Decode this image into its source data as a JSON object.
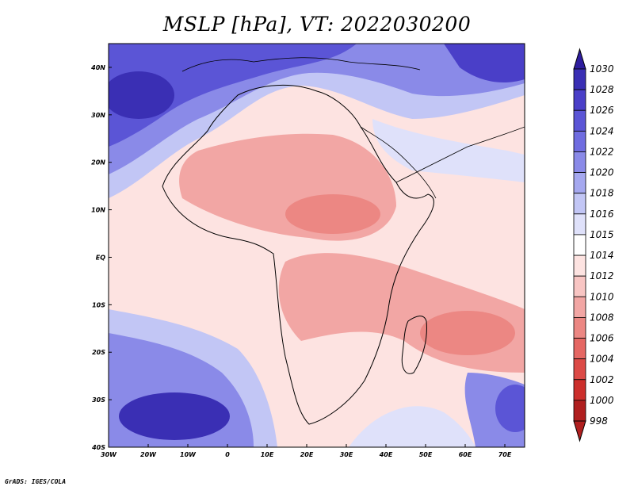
{
  "title": "MSLP [hPa], VT: 2022030200",
  "footer": "GrADS: IGES/COLA",
  "map": {
    "lon_labels": [
      "30W",
      "20W",
      "10W",
      "0",
      "10E",
      "20E",
      "30E",
      "40E",
      "50E",
      "60E",
      "70E"
    ],
    "lat_labels": [
      "40N",
      "30N",
      "20N",
      "10N",
      "EQ",
      "10S",
      "20S",
      "30S",
      "40S"
    ],
    "lon_range": [
      -30,
      75
    ],
    "lat_range": [
      -40,
      45
    ]
  },
  "colorbar": {
    "labels": [
      "1030",
      "1028",
      "1026",
      "1024",
      "1022",
      "1020",
      "1018",
      "1016",
      "1015",
      "1014",
      "1012",
      "1010",
      "1008",
      "1006",
      "1004",
      "1002",
      "1000",
      "998"
    ],
    "colors": [
      "#2e1d9e",
      "#3a2fb4",
      "#4a3fc8",
      "#5b55d6",
      "#6f6ce0",
      "#8a8ae8",
      "#a5a8ef",
      "#c2c6f5",
      "#dfe1fa",
      "#ffffff",
      "#fde3e1",
      "#f8c5c3",
      "#f2a6a4",
      "#ec8783",
      "#e56763",
      "#dc4a46",
      "#cc2f2c",
      "#b01f1f"
    ]
  }
}
